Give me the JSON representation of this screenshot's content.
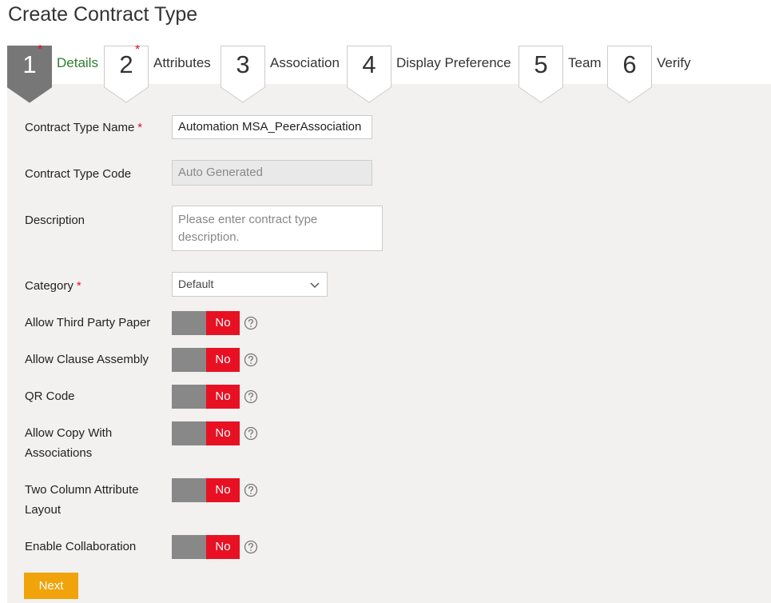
{
  "header": {
    "title": "Create Contract Type"
  },
  "required_marker": "*",
  "steps": [
    {
      "number": "1",
      "label": "Details",
      "required": true,
      "active": true
    },
    {
      "number": "2",
      "label": "Attributes",
      "required": true,
      "active": false
    },
    {
      "number": "3",
      "label": "Association",
      "required": false,
      "active": false
    },
    {
      "number": "4",
      "label": "Display Preference",
      "required": false,
      "active": false
    },
    {
      "number": "5",
      "label": "Team",
      "required": false,
      "active": false
    },
    {
      "number": "6",
      "label": "Verify",
      "required": false,
      "active": false
    }
  ],
  "fields": {
    "name": {
      "label": "Contract Type Name",
      "value": "Automation MSA_PeerAssociation"
    },
    "code": {
      "label": "Contract Type Code",
      "value": "Auto Generated"
    },
    "description": {
      "label": "Description",
      "placeholder": "Please enter contract type description."
    },
    "category": {
      "label": "Category",
      "value": "Default"
    }
  },
  "toggles": [
    {
      "label": "Allow Third Party Paper",
      "state": "No"
    },
    {
      "label": "Allow Clause Assembly",
      "state": "No"
    },
    {
      "label": "QR Code",
      "state": "No"
    },
    {
      "label": "Allow Copy With Associations",
      "state": "No"
    },
    {
      "label": "Two Column Attribute Layout",
      "state": "No"
    },
    {
      "label": "Enable Collaboration",
      "state": "No"
    }
  ],
  "button": {
    "label": "Next"
  }
}
